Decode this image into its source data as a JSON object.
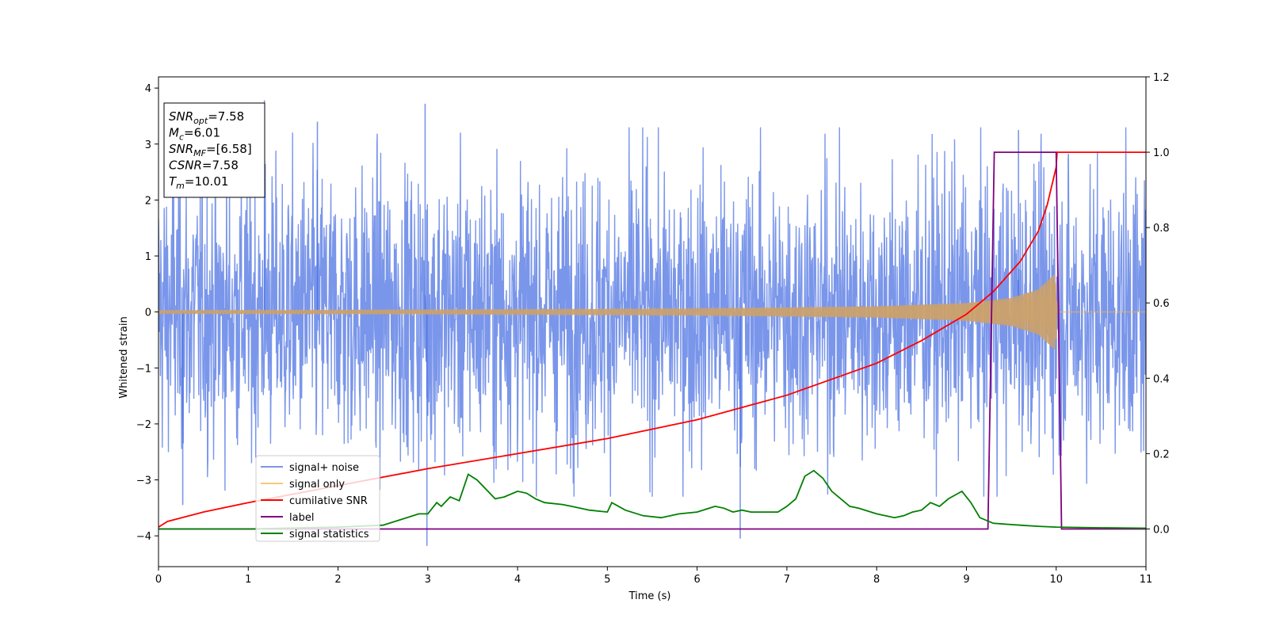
{
  "chart_data": {
    "type": "line",
    "title": "",
    "xlabel": "Time (s)",
    "ylabel": "Whitened strain",
    "xlim": [
      0,
      11
    ],
    "ylim": [
      -4.55,
      4.2
    ],
    "ylim_right": [
      -0.1,
      1.2
    ],
    "x_ticks": [
      0,
      1,
      2,
      3,
      4,
      5,
      6,
      7,
      8,
      9,
      10,
      11
    ],
    "y_ticks": [
      -4,
      -3,
      -2,
      -1,
      0,
      1,
      2,
      3,
      4
    ],
    "y_right_ticks": [
      0.0,
      0.2,
      0.4,
      0.6,
      0.8,
      1.0,
      1.2
    ],
    "legend_position": "lower-left",
    "grid": false,
    "annotation": {
      "lines": [
        {
          "var": "SNR",
          "sub": "opt",
          "val": "=7.58"
        },
        {
          "var": "M",
          "sub": "c",
          "val": "=6.01"
        },
        {
          "var": "SNR",
          "sub": "MF",
          "val": "=[6.58]"
        },
        {
          "var": "CSNR",
          "sub": "",
          "val": "=7.58"
        },
        {
          "var": "T",
          "sub": "m",
          "val": "=10.01"
        }
      ]
    },
    "series": [
      {
        "name": "signal+ noise",
        "axis": "left",
        "color": "#4169e1",
        "opacity": 0.7,
        "kind": "noise",
        "noise_std": 1.25,
        "extremes": [
          [
            1.18,
            3.78
          ],
          [
            2.97,
            3.72
          ],
          [
            2.99,
            -4.18
          ],
          [
            6.48,
            -4.05
          ],
          [
            9.58,
            3.25
          ],
          [
            0.27,
            -3.45
          ],
          [
            1.77,
            3.4
          ]
        ]
      },
      {
        "name": "signal only",
        "axis": "left",
        "color": "#f5b041",
        "opacity": 0.7,
        "kind": "chirp",
        "merger_time": 10.01,
        "amplitude_envelope": [
          [
            0,
            0.03
          ],
          [
            3,
            0.04
          ],
          [
            6,
            0.06
          ],
          [
            8,
            0.1
          ],
          [
            9,
            0.16
          ],
          [
            9.5,
            0.25
          ],
          [
            9.8,
            0.4
          ],
          [
            10.0,
            0.7
          ],
          [
            10.01,
            0
          ]
        ]
      },
      {
        "name": "cumilative SNR",
        "axis": "right",
        "color": "#ff0000",
        "kind": "line",
        "x": [
          0,
          0.1,
          0.5,
          1,
          2,
          3,
          4,
          5,
          6,
          7,
          8,
          8.5,
          9,
          9.3,
          9.6,
          9.8,
          9.9,
          10,
          10.01,
          11
        ],
        "y": [
          0.005,
          0.02,
          0.045,
          0.07,
          0.115,
          0.16,
          0.2,
          0.24,
          0.29,
          0.355,
          0.44,
          0.5,
          0.57,
          0.63,
          0.71,
          0.79,
          0.86,
          0.96,
          1.0,
          1.0
        ]
      },
      {
        "name": "label",
        "axis": "right",
        "color": "#800080",
        "kind": "line",
        "x": [
          0,
          9.24,
          9.31,
          10.0,
          10.06,
          11
        ],
        "y": [
          0,
          0,
          1,
          1,
          0,
          0
        ]
      },
      {
        "name": "signal statistics",
        "axis": "right",
        "color": "#008000",
        "kind": "line",
        "x": [
          0,
          1,
          2,
          2.5,
          2.7,
          2.9,
          3.0,
          3.1,
          3.15,
          3.25,
          3.35,
          3.45,
          3.55,
          3.65,
          3.75,
          3.85,
          4.0,
          4.1,
          4.2,
          4.3,
          4.5,
          4.6,
          4.8,
          5.0,
          5.05,
          5.2,
          5.4,
          5.6,
          5.8,
          6.0,
          6.2,
          6.3,
          6.4,
          6.5,
          6.6,
          6.7,
          6.9,
          7.0,
          7.1,
          7.2,
          7.3,
          7.4,
          7.5,
          7.6,
          7.7,
          7.8,
          8.0,
          8.2,
          8.3,
          8.4,
          8.5,
          8.6,
          8.7,
          8.8,
          8.95,
          9.05,
          9.15,
          9.3,
          9.6,
          9.8,
          10.0,
          10.5,
          11
        ],
        "y": [
          0.0,
          0.0,
          0.005,
          0.01,
          0.025,
          0.04,
          0.04,
          0.07,
          0.06,
          0.085,
          0.075,
          0.145,
          0.13,
          0.105,
          0.08,
          0.085,
          0.1,
          0.095,
          0.08,
          0.07,
          0.065,
          0.06,
          0.05,
          0.045,
          0.07,
          0.05,
          0.035,
          0.03,
          0.04,
          0.045,
          0.06,
          0.055,
          0.045,
          0.05,
          0.045,
          0.045,
          0.045,
          0.06,
          0.08,
          0.14,
          0.155,
          0.135,
          0.1,
          0.08,
          0.06,
          0.055,
          0.04,
          0.03,
          0.035,
          0.045,
          0.05,
          0.07,
          0.06,
          0.08,
          0.1,
          0.07,
          0.03,
          0.015,
          0.01,
          0.007,
          0.005,
          0.003,
          0.002
        ]
      }
    ]
  }
}
